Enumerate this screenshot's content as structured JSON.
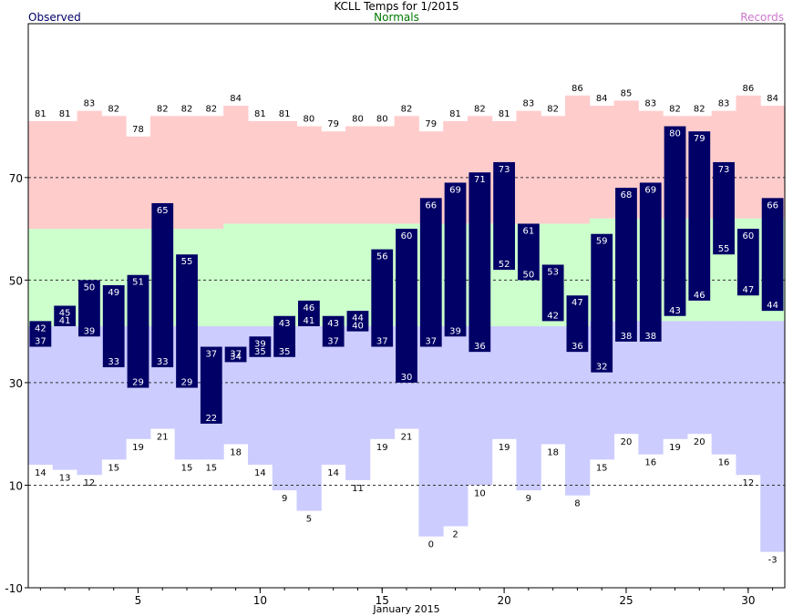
{
  "title": "KCLL Temps for 1/2015",
  "legend": {
    "observed": "Observed",
    "normals": "Normals",
    "records": "Records"
  },
  "colors": {
    "observed_bar": "#000066",
    "observed_label": "#000066",
    "normals_label": "#007700",
    "records_label": "#cc77cc",
    "record_high_band": "#ffcccc",
    "normal_band": "#ccffcc",
    "record_low_band": "#ccccff",
    "grid": "#333333"
  },
  "chart_data": {
    "type": "bar",
    "subtype": "floating-range",
    "xlabel": "January 2015",
    "ylabel": "",
    "ylim": [
      -10,
      100
    ],
    "xlim": [
      0.5,
      31.5
    ],
    "x_ticks": [
      5,
      10,
      15,
      20,
      25,
      30
    ],
    "y_ticks": [
      -10,
      10,
      30,
      50,
      70
    ],
    "grid_lines": [
      10,
      30,
      50,
      70
    ],
    "days": [
      1,
      2,
      3,
      4,
      5,
      6,
      7,
      8,
      9,
      10,
      11,
      12,
      13,
      14,
      15,
      16,
      17,
      18,
      19,
      20,
      21,
      22,
      23,
      24,
      25,
      26,
      27,
      28,
      29,
      30,
      31
    ],
    "record_high": [
      81,
      81,
      83,
      82,
      78,
      82,
      82,
      82,
      84,
      81,
      81,
      80,
      79,
      80,
      80,
      82,
      79,
      81,
      82,
      81,
      83,
      82,
      86,
      84,
      85,
      83,
      82,
      82,
      83,
      86,
      84
    ],
    "record_low": [
      14,
      13,
      12,
      15,
      19,
      21,
      15,
      15,
      18,
      14,
      9,
      5,
      14,
      11,
      19,
      21,
      0,
      2,
      10,
      19,
      9,
      18,
      8,
      15,
      20,
      16,
      19,
      20,
      16,
      12,
      -3
    ],
    "normal_high": [
      60,
      60,
      60,
      60,
      60,
      60,
      60,
      60,
      61,
      61,
      61,
      61,
      61,
      61,
      61,
      61,
      61,
      61,
      61,
      61,
      61,
      61,
      61,
      62,
      62,
      62,
      62,
      62,
      62,
      62,
      62
    ],
    "normal_low": [
      41,
      41,
      41,
      41,
      41,
      41,
      41,
      41,
      41,
      41,
      41,
      41,
      41,
      41,
      41,
      41,
      41,
      41,
      41,
      41,
      41,
      41,
      41,
      42,
      42,
      42,
      42,
      42,
      42,
      42,
      42
    ],
    "observed_high": [
      42,
      45,
      50,
      49,
      51,
      65,
      55,
      37,
      37,
      39,
      43,
      46,
      43,
      44,
      56,
      60,
      66,
      69,
      71,
      73,
      61,
      53,
      47,
      59,
      68,
      69,
      80,
      79,
      73,
      60,
      66
    ],
    "observed_low": [
      37,
      41,
      39,
      33,
      29,
      33,
      29,
      22,
      34,
      35,
      35,
      41,
      37,
      40,
      37,
      30,
      37,
      39,
      36,
      52,
      50,
      42,
      36,
      32,
      38,
      38,
      43,
      46,
      55,
      47,
      44
    ]
  }
}
